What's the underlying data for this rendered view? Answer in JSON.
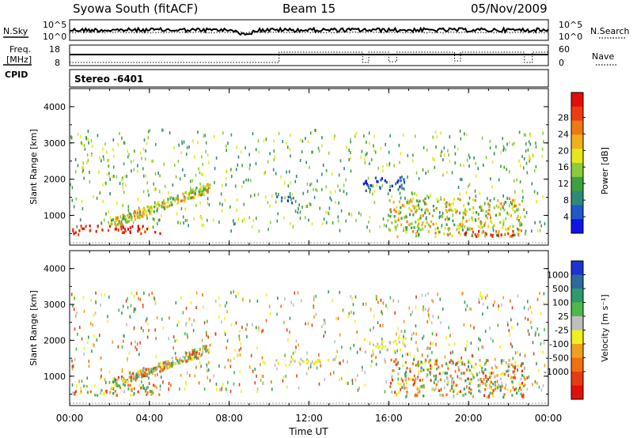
{
  "header": {
    "station": "Syowa South (fitACF)",
    "beam": "Beam 15",
    "date": "05/Nov/2009"
  },
  "stats_panel": {
    "left_label": "N.Sky",
    "right_label": "N.Search",
    "left_ticks": [
      "10^5",
      "10^0"
    ],
    "right_ticks": [
      "10^5",
      "10^0"
    ]
  },
  "freq_panel": {
    "label_1": "Freq.",
    "label_2": "[MHz]",
    "cpid_label": "CPID",
    "left_ticks": [
      "18",
      "8"
    ],
    "right_ticks": [
      "60",
      "0"
    ],
    "right_label": "Nave"
  },
  "cpid_value": "Stereo -6401",
  "chart_data": [
    {
      "type": "heatmap",
      "name": "power",
      "xlabel": "",
      "ylabel": "Slant Range [km]",
      "x_ticks": [
        "00:00",
        "04:00",
        "08:00",
        "12:00",
        "16:00",
        "20:00",
        "00:00"
      ],
      "y_ticks": [
        "1000",
        "2000",
        "3000",
        "4000"
      ],
      "xlim_hours": [
        0,
        24
      ],
      "ylim_km": [
        180,
        4500
      ],
      "colorbar": {
        "label": "Power [dB]",
        "ticks": [
          "4",
          "8",
          "12",
          "16",
          "20",
          "24",
          "28"
        ],
        "colors": [
          "#0f14e6",
          "#1f58c8",
          "#2e8a78",
          "#3fa040",
          "#8ccc3a",
          "#e6e61e",
          "#f0b01e",
          "#f07814",
          "#ee3c10",
          "#e10f0a"
        ]
      },
      "features": [
        {
          "t": [
            0.1,
            4.5
          ],
          "range_km": [
            500,
            750
          ],
          "level": "high"
        },
        {
          "t": [
            2.0,
            7.0
          ],
          "range_km": [
            800,
            1800
          ],
          "level": "mid"
        },
        {
          "t": [
            10.3,
            11.3
          ],
          "range_km": [
            1350,
            1550
          ],
          "level": "low"
        },
        {
          "t": [
            14.7,
            16.8
          ],
          "range_km": [
            1700,
            2100
          ],
          "level": "low"
        },
        {
          "t": [
            16.0,
            22.8
          ],
          "range_km": [
            450,
            1500
          ],
          "level": "mid"
        },
        {
          "t": [
            19.5,
            22.5
          ],
          "range_km": [
            450,
            600
          ],
          "level": "high"
        }
      ]
    },
    {
      "type": "heatmap",
      "name": "velocity",
      "xlabel": "Time UT",
      "ylabel": "Slant Range [km]",
      "x_ticks": [
        "00:00",
        "04:00",
        "08:00",
        "12:00",
        "16:00",
        "20:00",
        "00:00"
      ],
      "y_ticks": [
        "1000",
        "2000",
        "3000",
        "4000"
      ],
      "xlim_hours": [
        0,
        24
      ],
      "ylim_km": [
        180,
        4500
      ],
      "colorbar": {
        "label": "Velocity [m s⁻¹]",
        "ticks": [
          "1000",
          "500",
          "100",
          "25",
          "-25",
          "-100",
          "-500",
          "-1000"
        ],
        "colors": [
          "#1e32d2",
          "#2e6aa0",
          "#2e9a6a",
          "#4bb84b",
          "#bebebe",
          "#f0f01e",
          "#f0a01e",
          "#f07010",
          "#e63c14",
          "#e10f0a"
        ]
      },
      "features": [
        {
          "t": [
            0.1,
            4.5
          ],
          "range_km": [
            500,
            800
          ],
          "level": "mixed"
        },
        {
          "t": [
            2.0,
            7.0
          ],
          "range_km": [
            800,
            1800
          ],
          "level": "mixed"
        },
        {
          "t": [
            10.3,
            13.5
          ],
          "range_km": [
            1350,
            1550
          ],
          "level": "neutral"
        },
        {
          "t": [
            14.7,
            16.8
          ],
          "range_km": [
            1700,
            2100
          ],
          "level": "neutral"
        },
        {
          "t": [
            16.0,
            22.8
          ],
          "range_km": [
            450,
            1500
          ],
          "level": "mixed"
        }
      ]
    }
  ]
}
